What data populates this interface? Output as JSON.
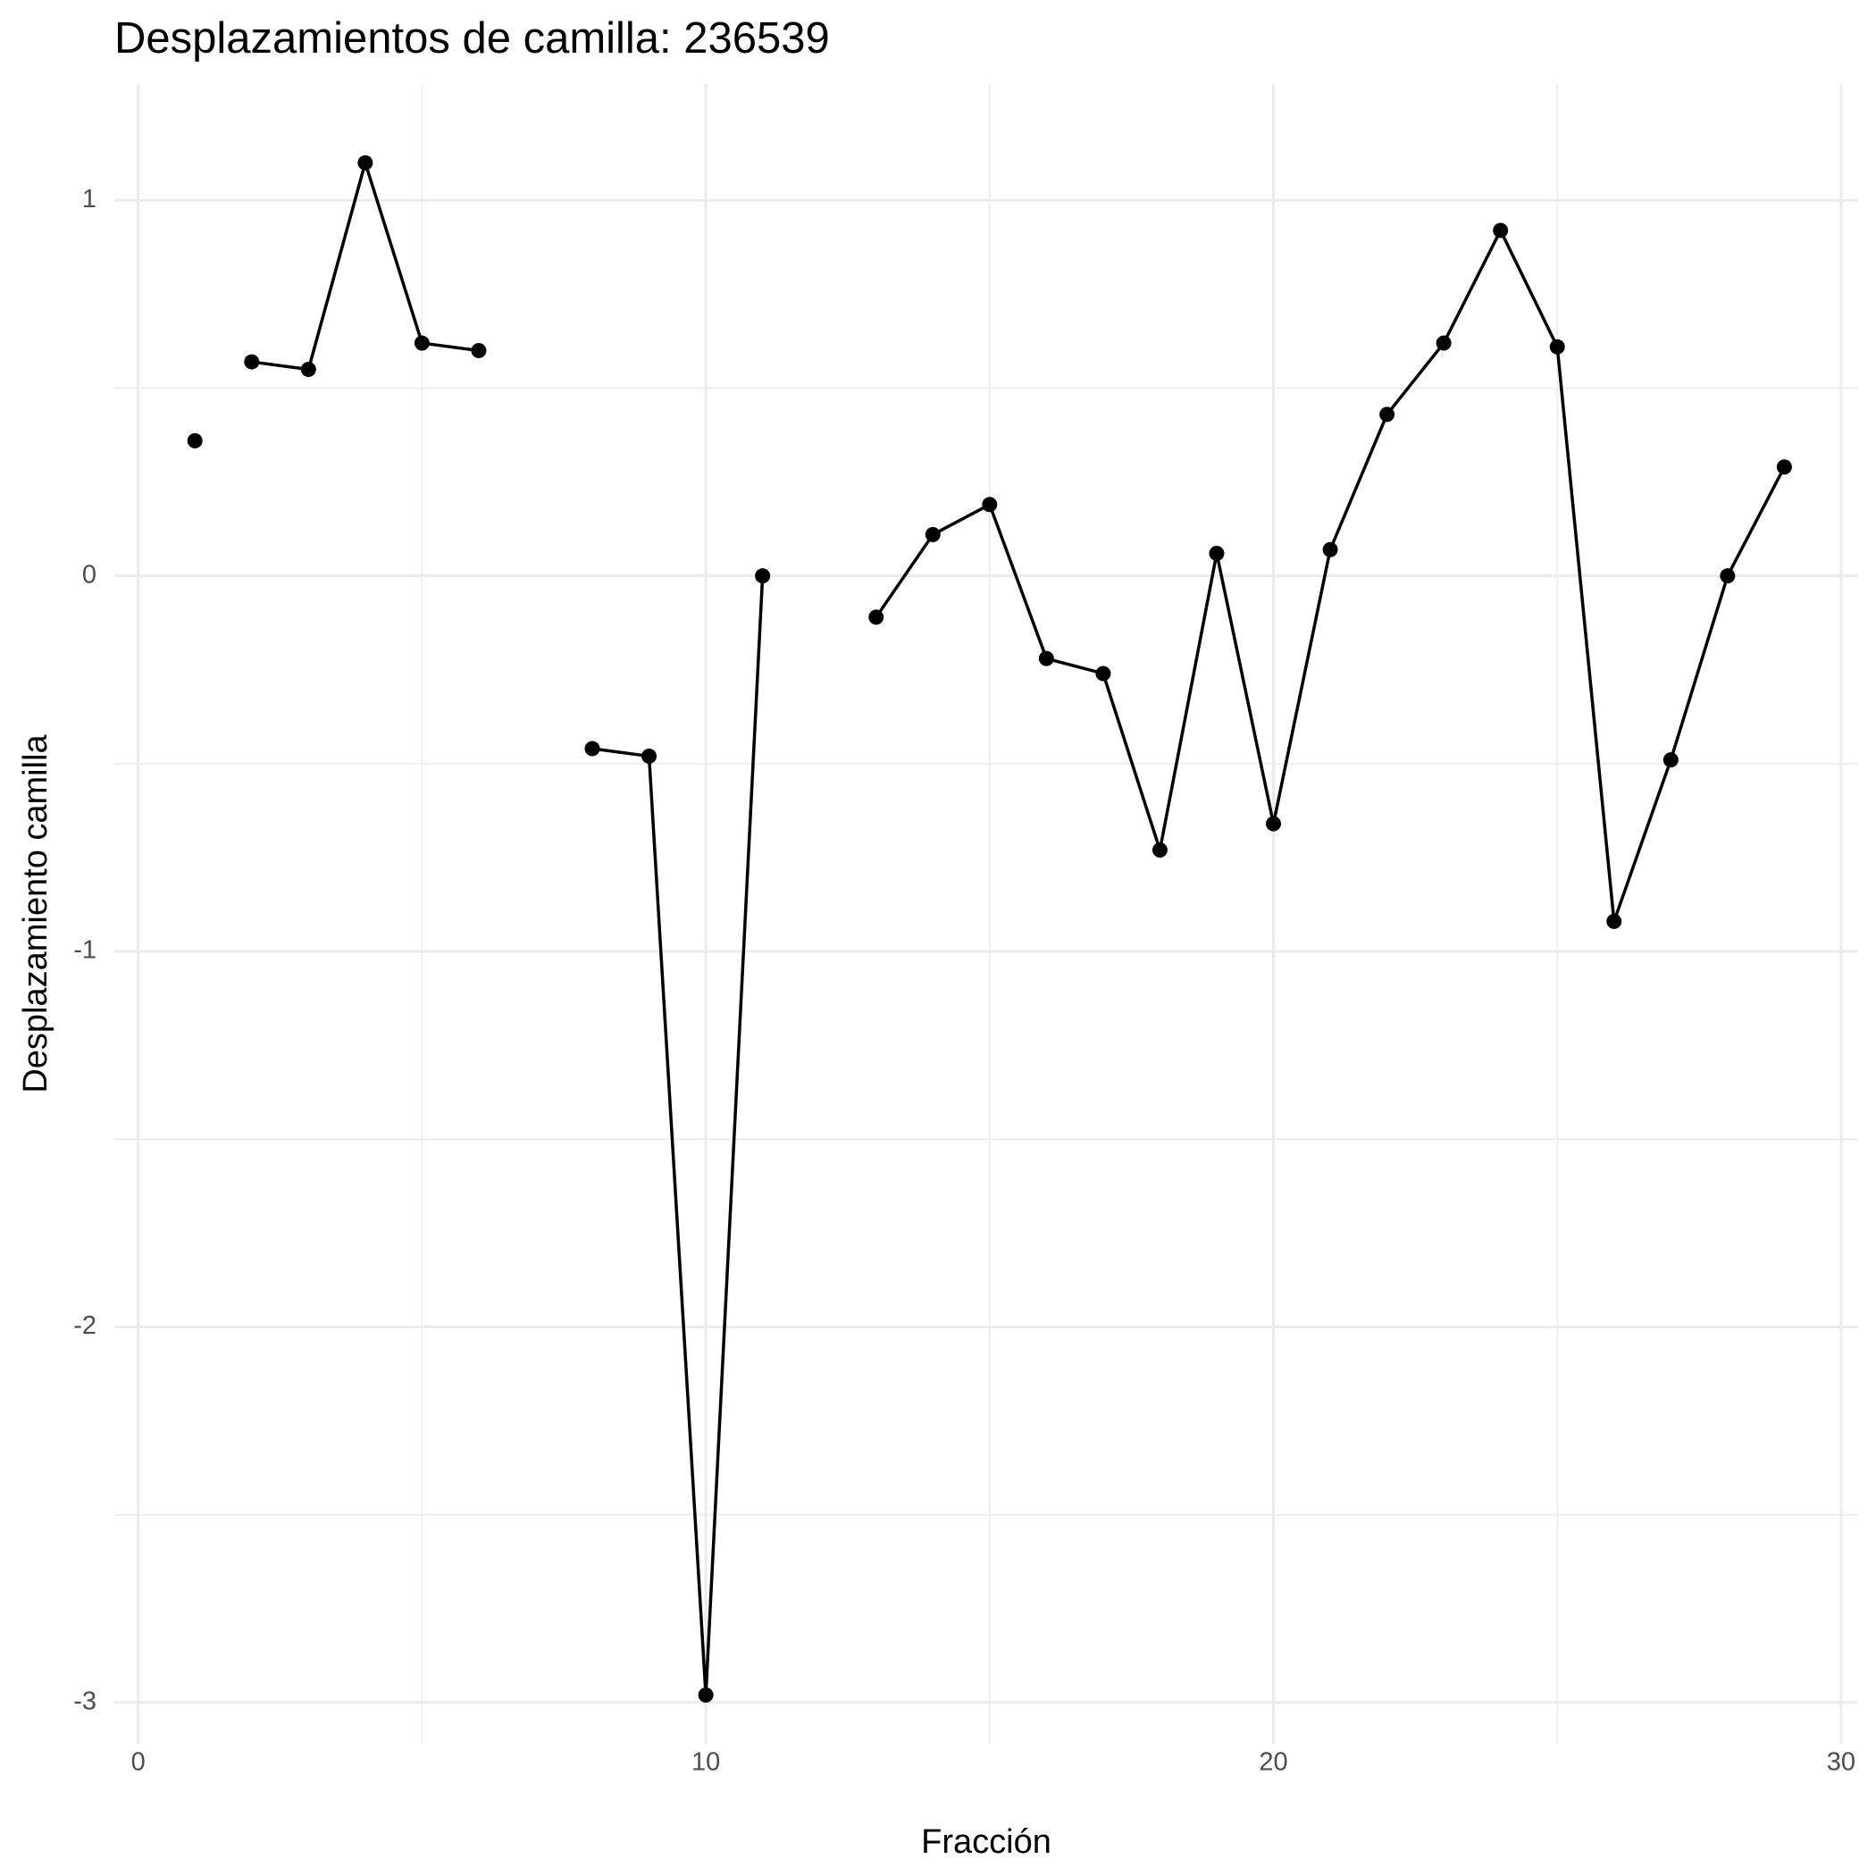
{
  "chart_data": {
    "type": "line",
    "title": "Desplazamientos de camilla: 236539",
    "x_label": "Fracción",
    "y_label": "Desplazamiento camilla",
    "x": [
      1,
      null,
      2,
      3,
      4,
      5,
      6,
      7,
      8,
      9,
      10,
      11,
      12,
      13,
      14,
      15,
      16,
      17,
      18,
      19,
      20,
      21,
      22,
      23,
      24,
      25,
      26,
      27,
      28,
      29
    ],
    "series": [
      {
        "color": "#000000",
        "values": [
          0.36,
          null,
          0.57,
          0.55,
          1.1,
          0.62,
          0.6,
          null,
          -0.46,
          -0.48,
          -2.98,
          0,
          null,
          -0.11,
          0.11,
          0.19,
          -0.22,
          -0.26,
          -0.73,
          0.06,
          -0.66,
          0.07,
          0.43,
          0.62,
          0.92,
          0.61,
          -0.92,
          -0.49,
          0,
          0.29
        ]
      }
    ],
    "xlim": [
      -0.42,
      30.3
    ],
    "ylim": [
      -3.11,
      1.31
    ],
    "xticks": [
      0,
      10,
      20,
      30
    ],
    "yticks": [
      1,
      0,
      -1,
      -2,
      -3
    ],
    "x_minor_ticks": [
      5,
      15,
      25
    ],
    "y_minor_ticks": [
      0.5,
      -0.5,
      -1.5,
      -2.5
    ],
    "grid": true,
    "grid_color": "#ebebeb"
  }
}
